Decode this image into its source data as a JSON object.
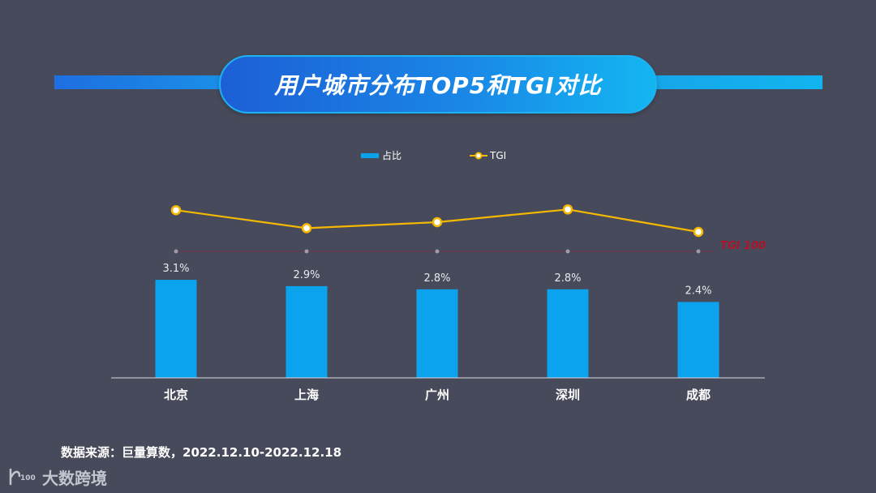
{
  "title": "用户城市分布TOP5和TGI对比",
  "legend": [
    {
      "name": "占比",
      "color": "#0ba3ee"
    },
    {
      "name": "TGI",
      "color": "#f5b800"
    }
  ],
  "chart_data": {
    "type": "bar",
    "categories": [
      "北京",
      "上海",
      "广州",
      "深圳",
      "成都"
    ],
    "series": [
      {
        "name": "占比",
        "type": "bar",
        "values": [
          3.1,
          2.9,
          2.8,
          2.8,
          2.4
        ],
        "labels": [
          "3.1%",
          "2.9%",
          "2.8%",
          "2.8%",
          "2.4%"
        ],
        "color": "#0ba3ee"
      },
      {
        "name": "TGI",
        "type": "line",
        "values": [
          155,
          131,
          139,
          156,
          126
        ],
        "color": "#f5b800"
      }
    ],
    "reference_line": {
      "label": "TGI 100",
      "value": 100,
      "color": "#b0142a"
    },
    "title": "用户城市分布TOP5和TGI对比",
    "legend_position": "top-center",
    "grid": false
  },
  "source_text": "数据来源：巨量算数，2022.12.10-2022.12.18",
  "logo_text": "大数跨境",
  "logo_mark_text": "100",
  "colors": {
    "background": "#474a5a",
    "bar": "#0ba3ee",
    "line": "#f5b800",
    "text": "#ffffff"
  }
}
